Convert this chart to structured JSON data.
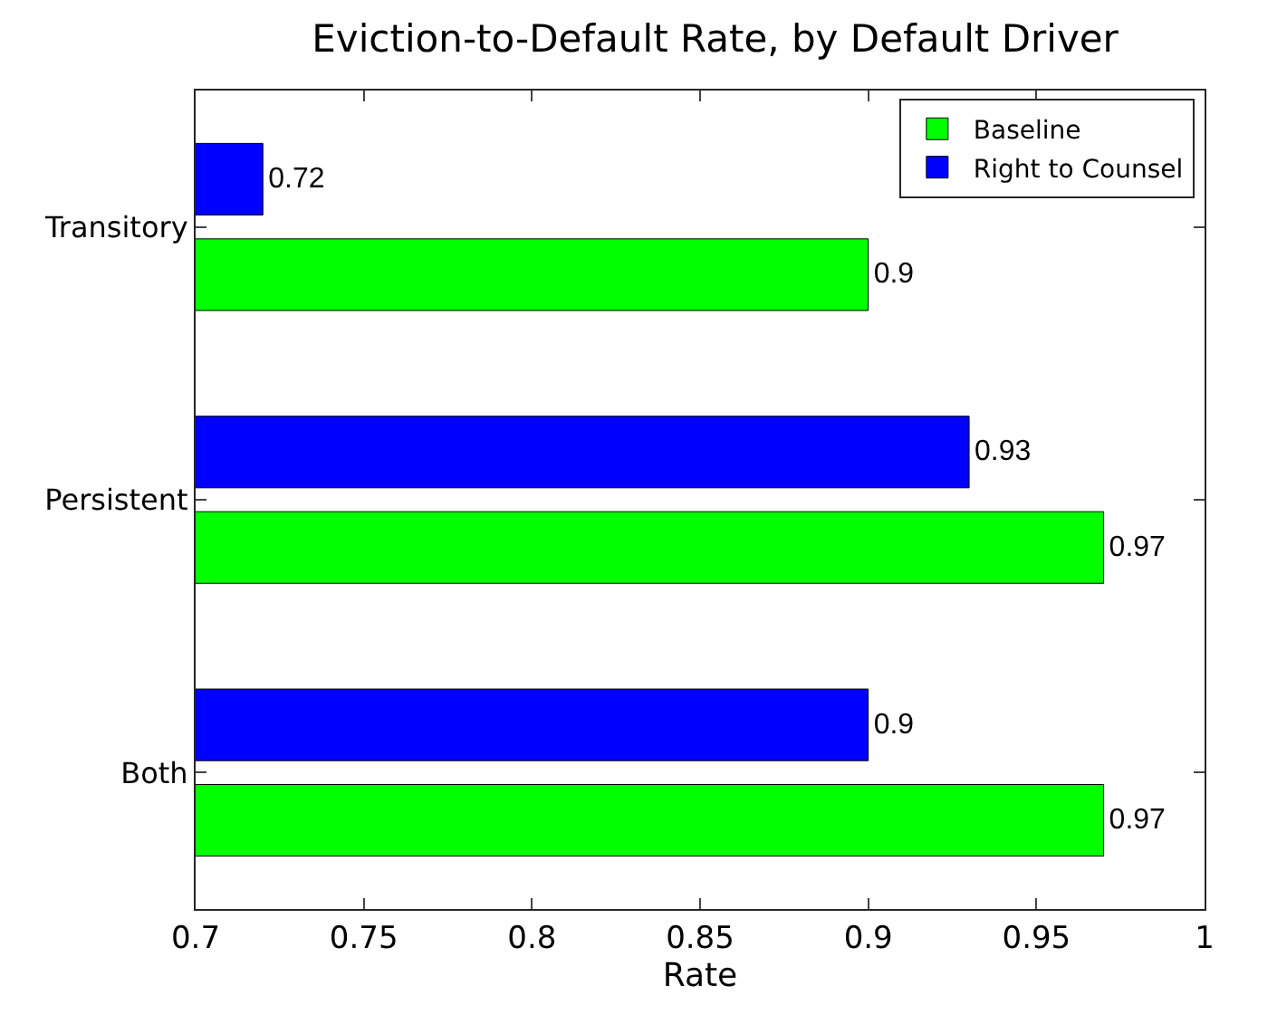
{
  "chart_data": {
    "type": "bar",
    "orientation": "horizontal",
    "title": "Eviction-to-Default Rate, by Default Driver",
    "xlabel": "Rate",
    "categories": [
      "Transitory",
      "Persistent",
      "Both"
    ],
    "series": [
      {
        "name": "Baseline",
        "color": "#00ff00",
        "values": [
          0.9,
          0.97,
          0.97
        ]
      },
      {
        "name": "Right to Counsel",
        "color": "#0000ff",
        "values": [
          0.72,
          0.93,
          0.9
        ]
      }
    ],
    "data_labels": true,
    "xlim": [
      0.7,
      1
    ],
    "xticks": [
      0.7,
      0.75,
      0.8,
      0.85,
      0.9,
      0.95,
      1
    ],
    "grid": false,
    "legend": "top right"
  }
}
